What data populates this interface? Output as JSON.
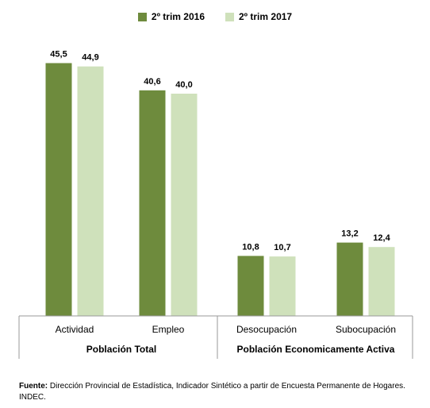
{
  "legend": [
    {
      "name": "2º trim 2016",
      "color": "#6e8b3d"
    },
    {
      "name": "2º trim 2017",
      "color": "#cfe1bb"
    }
  ],
  "source": {
    "label": "Fuente:",
    "text": "Dirección Provincial de Estadística, Indicador Sintético a partir de Encuesta Permanente de Hogares. INDEC."
  },
  "chart_data": {
    "type": "bar",
    "categories": [
      "Actividad",
      "Empleo",
      "Desocupación",
      "Subocupación"
    ],
    "groups": [
      {
        "label": "Población Total",
        "categories": [
          "Actividad",
          "Empleo"
        ]
      },
      {
        "label": "Población Economicamente Activa",
        "categories": [
          "Desocupación",
          "Subocupación"
        ]
      }
    ],
    "series": [
      {
        "name": "2º trim 2016",
        "values": [
          45.5,
          40.6,
          10.8,
          13.2
        ],
        "color": "#6e8b3d"
      },
      {
        "name": "2º trim 2017",
        "values": [
          44.9,
          40.0,
          10.7,
          12.4
        ],
        "color": "#cfe1bb"
      }
    ],
    "value_labels": [
      [
        "45,5",
        "40,6",
        "10,8",
        "13,2"
      ],
      [
        "44,9",
        "40,0",
        "10,7",
        "12,4"
      ]
    ],
    "ylim": [
      0,
      50
    ],
    "grid": false,
    "legend_position": "top"
  }
}
